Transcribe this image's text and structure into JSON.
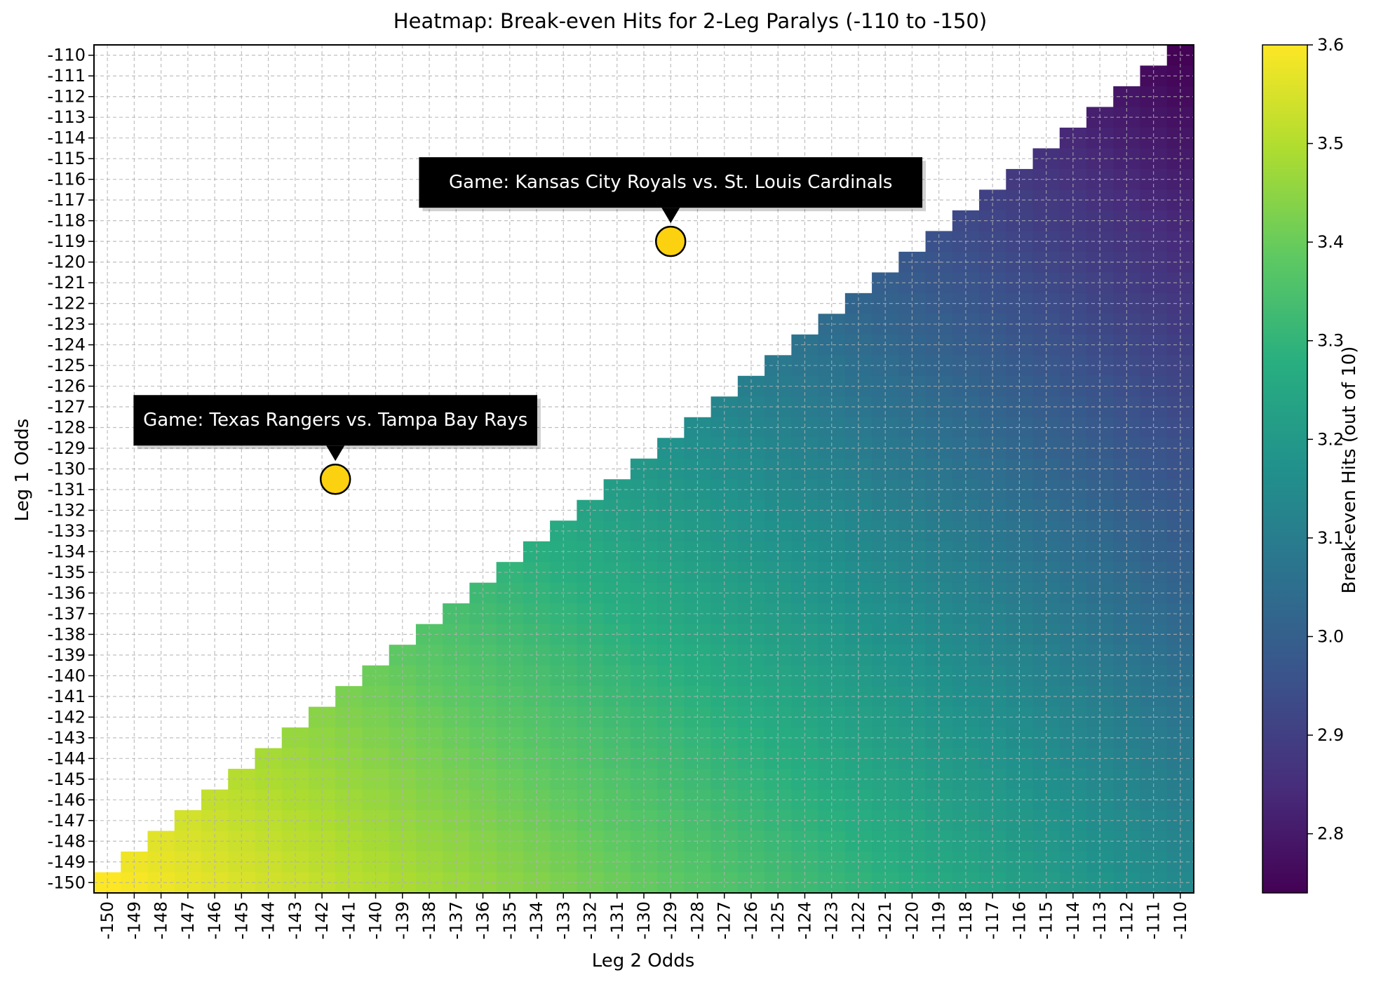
{
  "chart_data": {
    "type": "heatmap",
    "title": "Heatmap: Break-even Hits for 2-Leg Paralys (-110 to -150)",
    "xlabel": "Leg 2 Odds",
    "ylabel": "Leg 1 Odds",
    "x_ticks": [
      "-150",
      "-149",
      "-148",
      "-147",
      "-146",
      "-145",
      "-144",
      "-143",
      "-142",
      "-141",
      "-140",
      "-139",
      "-138",
      "-137",
      "-136",
      "-135",
      "-134",
      "-133",
      "-132",
      "-131",
      "-130",
      "-129",
      "-128",
      "-127",
      "-126",
      "-125",
      "-124",
      "-123",
      "-122",
      "-121",
      "-120",
      "-119",
      "-118",
      "-117",
      "-116",
      "-115",
      "-114",
      "-113",
      "-112",
      "-111",
      "-110"
    ],
    "y_ticks": [
      "-110",
      "-111",
      "-112",
      "-113",
      "-114",
      "-115",
      "-116",
      "-117",
      "-118",
      "-119",
      "-120",
      "-121",
      "-122",
      "-123",
      "-124",
      "-125",
      "-126",
      "-127",
      "-128",
      "-129",
      "-130",
      "-131",
      "-132",
      "-133",
      "-134",
      "-135",
      "-136",
      "-137",
      "-138",
      "-139",
      "-140",
      "-141",
      "-142",
      "-143",
      "-144",
      "-145",
      "-146",
      "-147",
      "-148",
      "-149",
      "-150"
    ],
    "cells_shown": "lower triangle where Leg 1 odds <= Leg 2 odds; other cells blank",
    "value_formula": "10 * (100/(|leg1|+100) + ... ) — break-even hits out of 10 = 10 * p1 * p2 where p = |odds|/(|odds|+100)",
    "colormap": "viridis",
    "colorbar": {
      "label": "Break-even Hits (out of 10)",
      "min": 2.74,
      "max": 3.6,
      "ticks": [
        "2.8",
        "2.9",
        "3.0",
        "3.1",
        "3.2",
        "3.3",
        "3.4",
        "3.5",
        "3.6"
      ]
    },
    "grid": true,
    "annotations": [
      {
        "text": "Game: Kansas City Royals vs. St. Louis Cardinals",
        "leg2": -129,
        "leg1": -119
      },
      {
        "text": "Game: Texas Rangers vs. Tampa Bay Rays",
        "leg2": -141.5,
        "leg1": -130.5
      }
    ]
  }
}
